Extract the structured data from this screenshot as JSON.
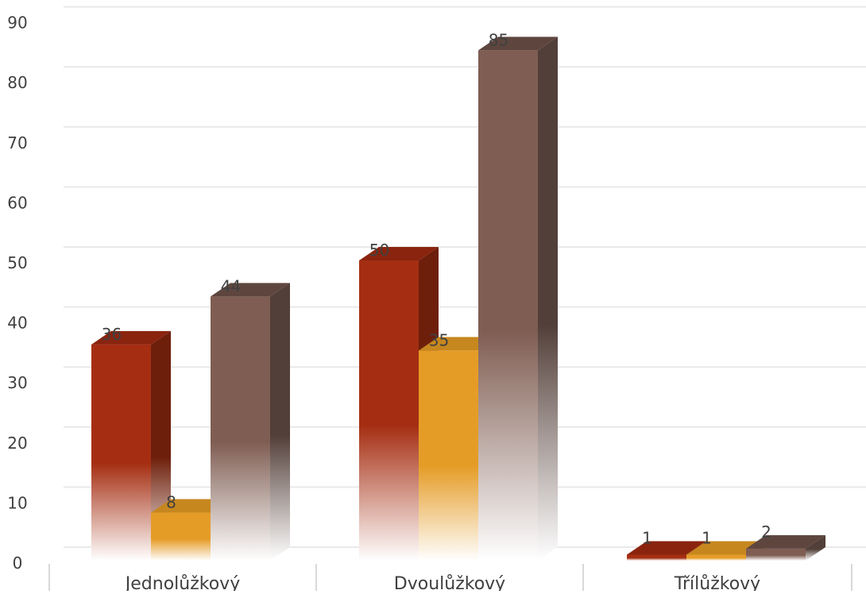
{
  "chart_data": {
    "type": "bar",
    "title": "",
    "xlabel": "",
    "ylabel": "",
    "categories": [
      "Jednolůžkový",
      "Dvoulůžkový",
      "Třílůžkový"
    ],
    "series": [
      {
        "values": [
          36,
          50,
          1
        ],
        "color": "#a52e12",
        "side_color": "#6e1f0b",
        "top_color": "#8a240e",
        "fade_to": "#ffffff"
      },
      {
        "values": [
          8,
          35,
          1
        ],
        "color": "#e59c27",
        "side_color": "#a4701c",
        "top_color": "#c7871f",
        "fade_to": "#ffffff"
      },
      {
        "values": [
          44,
          85,
          2
        ],
        "color": "#7f5d52",
        "side_color": "#533f39",
        "top_color": "#5e463f",
        "fade_to": "#ffffff"
      }
    ],
    "ylim": [
      0,
      90
    ],
    "yticks": [
      0,
      10,
      20,
      30,
      40,
      50,
      60,
      70,
      80,
      90
    ],
    "grid": true,
    "legend": "none",
    "style": "3d-clustered-column with gradient fade",
    "gridline_color": "#e9e9e9",
    "axis_line_color": "#d9d9d9",
    "label_color": "#404040"
  }
}
